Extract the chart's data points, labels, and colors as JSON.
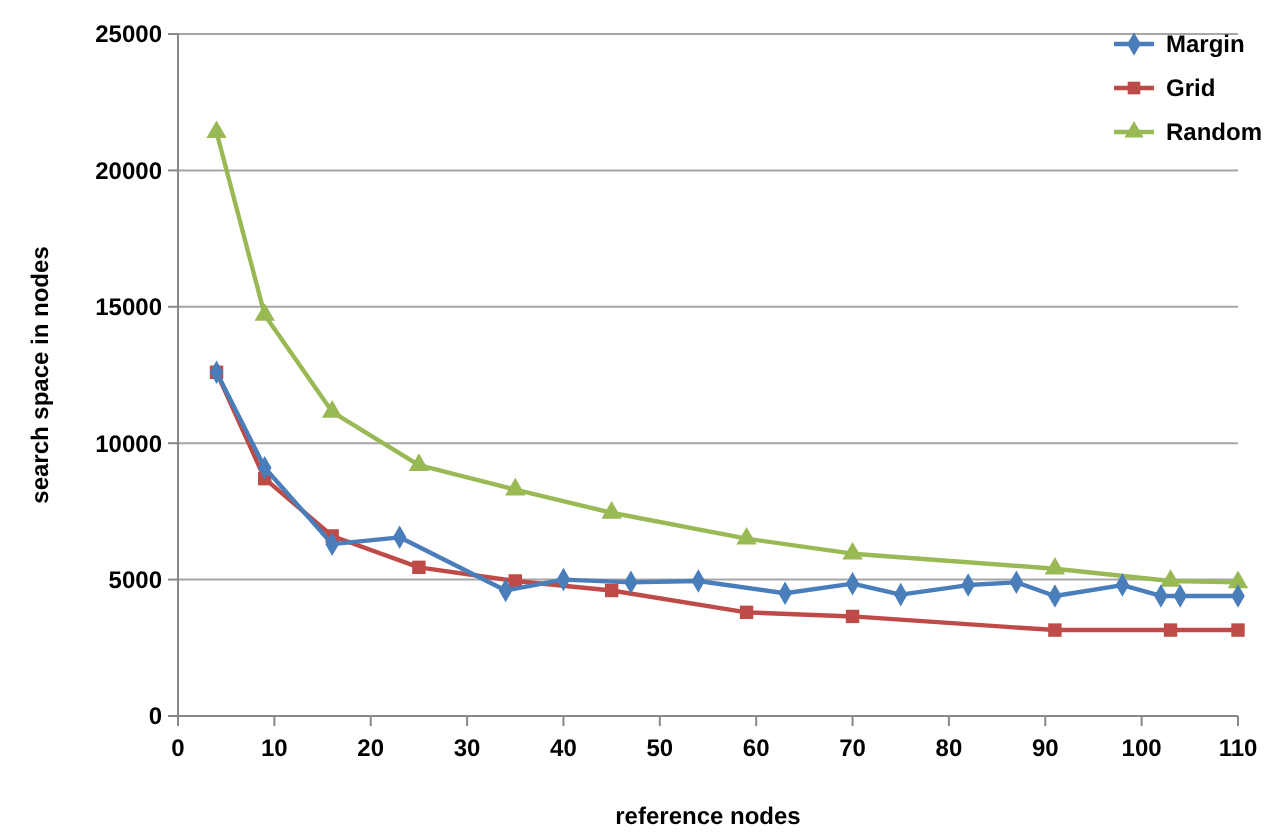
{
  "chart_data": {
    "type": "line",
    "xlabel": "reference nodes",
    "ylabel": "search space in nodes",
    "xlim": [
      0,
      110
    ],
    "xticks": [
      0,
      10,
      20,
      30,
      40,
      50,
      60,
      70,
      80,
      90,
      100,
      110
    ],
    "ylim": [
      0,
      25000
    ],
    "yticks": [
      0,
      5000,
      10000,
      15000,
      20000,
      25000
    ],
    "grid": "y",
    "legend": "top right",
    "series": [
      {
        "name": "Margin",
        "color": "#4a7ebb",
        "marker": "diamond",
        "x": [
          4,
          9,
          16,
          23,
          34,
          40,
          47,
          54,
          63,
          70,
          75,
          82,
          87,
          91,
          98,
          102,
          104,
          110
        ],
        "values": [
          12600,
          9100,
          6300,
          6550,
          4600,
          5000,
          4900,
          4950,
          4500,
          4850,
          4450,
          4800,
          4900,
          4400,
          4800,
          4400,
          4400,
          4400
        ]
      },
      {
        "name": "Grid",
        "color": "#be4b48",
        "marker": "square",
        "x": [
          4,
          9,
          16,
          25,
          35,
          45,
          59,
          70,
          91,
          103,
          110
        ],
        "values": [
          12600,
          8700,
          6600,
          5450,
          4950,
          4600,
          3800,
          3650,
          3150,
          3150,
          3150
        ]
      },
      {
        "name": "Random",
        "color": "#98b954",
        "marker": "triangle",
        "x": [
          4,
          9,
          16,
          25,
          35,
          45,
          59,
          70,
          91,
          103,
          110
        ],
        "values": [
          21400,
          14700,
          11150,
          9200,
          8300,
          7450,
          6500,
          5950,
          5400,
          4950,
          4900
        ]
      }
    ]
  }
}
